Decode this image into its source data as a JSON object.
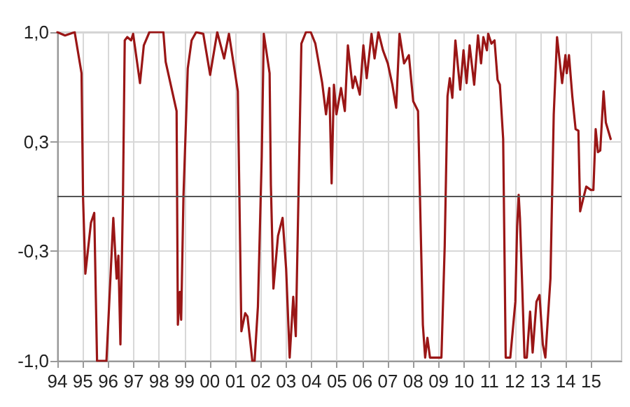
{
  "chart_data": {
    "type": "line",
    "xlim": [
      1994,
      2016.2
    ],
    "ylim": [
      -1,
      1
    ],
    "xticks": [
      {
        "value": 1994,
        "label": "94"
      },
      {
        "value": 1995,
        "label": "95"
      },
      {
        "value": 1996,
        "label": "96"
      },
      {
        "value": 1997,
        "label": "97"
      },
      {
        "value": 1998,
        "label": "98"
      },
      {
        "value": 1999,
        "label": "99"
      },
      {
        "value": 2000,
        "label": "00"
      },
      {
        "value": 2001,
        "label": "01"
      },
      {
        "value": 2002,
        "label": "02"
      },
      {
        "value": 2003,
        "label": "03"
      },
      {
        "value": 2004,
        "label": "04"
      },
      {
        "value": 2005,
        "label": "05"
      },
      {
        "value": 2006,
        "label": "06"
      },
      {
        "value": 2007,
        "label": "07"
      },
      {
        "value": 2008,
        "label": "08"
      },
      {
        "value": 2009,
        "label": "09"
      },
      {
        "value": 2010,
        "label": "10"
      },
      {
        "value": 2011,
        "label": "11"
      },
      {
        "value": 2012,
        "label": "12"
      },
      {
        "value": 2013,
        "label": "13"
      },
      {
        "value": 2014,
        "label": "14"
      },
      {
        "value": 2015,
        "label": "15"
      }
    ],
    "yticks": [
      {
        "value": -1,
        "label": "-1,0"
      },
      {
        "value": -0.3333,
        "label": "-0,3"
      },
      {
        "value": 0.3333,
        "label": "0,3"
      },
      {
        "value": 1,
        "label": "1,0"
      }
    ],
    "grid": true,
    "legend": false,
    "marker": "none",
    "line_style": "solid",
    "ref_lines": [
      {
        "axis": "y",
        "value": 0,
        "label": null,
        "color": "#555555"
      }
    ],
    "series": [
      {
        "color": "#9a1616",
        "x": [
          1994.0,
          1994.3,
          1994.68,
          1994.95,
          1995.01,
          1995.1,
          1995.32,
          1995.45,
          1995.56,
          1995.93,
          1996.2,
          1996.33,
          1996.4,
          1996.48,
          1996.58,
          1996.65,
          1996.75,
          1996.9,
          1996.98,
          1997.25,
          1997.4,
          1997.62,
          1998.17,
          1998.26,
          1998.69,
          1998.74,
          1998.82,
          1998.87,
          1998.96,
          1999.13,
          1999.28,
          1999.46,
          1999.74,
          2000.01,
          2000.29,
          2000.56,
          2000.75,
          2001.1,
          2001.24,
          2001.39,
          2001.48,
          2001.67,
          2001.76,
          2001.89,
          2002.04,
          2002.12,
          2002.35,
          2002.4,
          2002.5,
          2002.68,
          2002.86,
          2003.0,
          2003.14,
          2003.28,
          2003.38,
          2003.5,
          2003.6,
          2003.78,
          2003.97,
          2004.15,
          2004.42,
          2004.57,
          2004.7,
          2004.79,
          2004.88,
          2004.98,
          2005.16,
          2005.31,
          2005.43,
          2005.62,
          2005.71,
          2005.9,
          2006.04,
          2006.17,
          2006.36,
          2006.48,
          2006.63,
          2006.81,
          2007.0,
          2007.18,
          2007.33,
          2007.46,
          2007.64,
          2007.83,
          2008.0,
          2008.19,
          2008.38,
          2008.47,
          2008.56,
          2008.66,
          2009.11,
          2009.24,
          2009.35,
          2009.44,
          2009.54,
          2009.66,
          2009.85,
          2009.98,
          2010.1,
          2010.22,
          2010.4,
          2010.55,
          2010.67,
          2010.76,
          2010.9,
          2010.95,
          2011.08,
          2011.2,
          2011.32,
          2011.41,
          2011.54,
          2011.64,
          2011.82,
          2012.02,
          2012.09,
          2012.15,
          2012.2,
          2012.28,
          2012.38,
          2012.47,
          2012.6,
          2012.7,
          2012.85,
          2012.97,
          2013.1,
          2013.2,
          2013.4,
          2013.53,
          2013.66,
          2013.86,
          2013.99,
          2014.04,
          2014.13,
          2014.26,
          2014.39,
          2014.5,
          2014.57,
          2014.68,
          2014.81,
          2014.99,
          2015.09,
          2015.18,
          2015.27,
          2015.36,
          2015.49,
          2015.58,
          2015.77
        ],
        "values": [
          1.0,
          0.98,
          1.0,
          0.75,
          -0.01,
          -0.47,
          -0.16,
          -0.1,
          -1.0,
          -1.0,
          -0.13,
          -0.5,
          -0.36,
          -0.9,
          0.0,
          0.95,
          0.97,
          0.95,
          0.99,
          0.69,
          0.92,
          1.0,
          1.0,
          0.82,
          0.52,
          -0.78,
          -0.58,
          -0.75,
          0.0,
          0.78,
          0.95,
          1.0,
          0.99,
          0.74,
          1.0,
          0.84,
          0.99,
          0.64,
          -0.82,
          -0.71,
          -0.73,
          -1.0,
          -1.0,
          -0.67,
          0.24,
          0.99,
          0.75,
          0.07,
          -0.56,
          -0.24,
          -0.13,
          -0.44,
          -0.98,
          -0.61,
          -0.85,
          0.12,
          0.93,
          1.0,
          1.0,
          0.93,
          0.69,
          0.5,
          0.66,
          0.08,
          0.68,
          0.5,
          0.66,
          0.52,
          0.92,
          0.66,
          0.73,
          0.62,
          0.92,
          0.72,
          0.99,
          0.84,
          1.0,
          0.89,
          0.81,
          0.68,
          0.54,
          0.99,
          0.81,
          0.86,
          0.58,
          0.52,
          -0.78,
          -0.98,
          -0.86,
          -0.98,
          -0.98,
          -0.3,
          0.61,
          0.72,
          0.6,
          0.95,
          0.65,
          0.89,
          0.69,
          0.92,
          0.68,
          0.98,
          0.81,
          0.97,
          0.89,
          0.99,
          0.93,
          0.95,
          0.71,
          0.68,
          0.35,
          -0.98,
          -0.98,
          -0.64,
          -0.18,
          0.01,
          -0.13,
          -0.5,
          -0.98,
          -0.98,
          -0.7,
          -0.95,
          -0.64,
          -0.6,
          -0.9,
          -0.98,
          -0.5,
          0.5,
          0.97,
          0.69,
          0.86,
          0.75,
          0.86,
          0.61,
          0.41,
          0.4,
          -0.09,
          -0.02,
          0.06,
          0.04,
          0.04,
          0.41,
          0.27,
          0.28,
          0.64,
          0.45,
          0.35
        ]
      }
    ]
  }
}
